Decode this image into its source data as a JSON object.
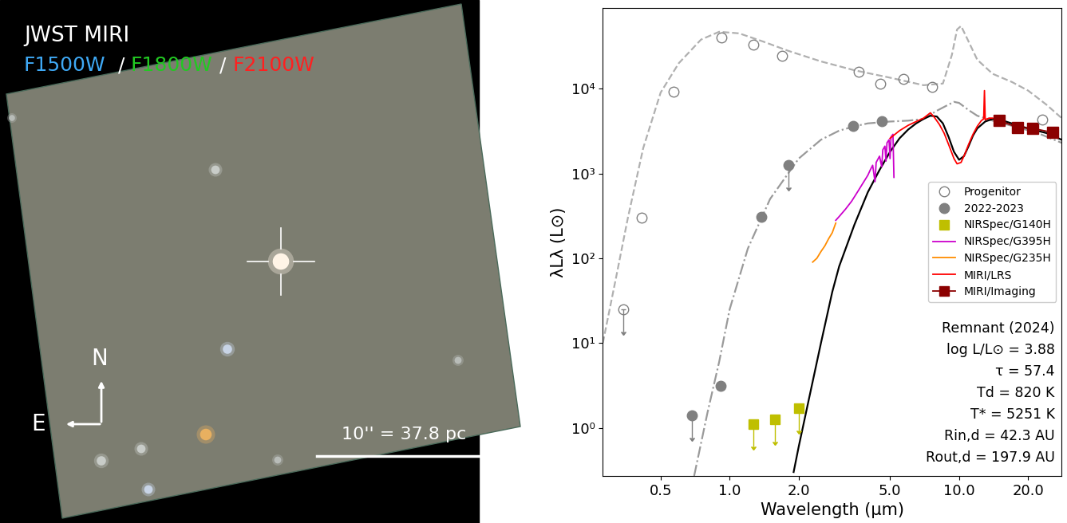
{
  "image_panel": {
    "title": "JWST MIRI",
    "filters": [
      {
        "name": "F1500W",
        "color": "#3fa9f5"
      },
      {
        "name": "F1800W",
        "color": "#22c822"
      },
      {
        "name": "F2100W",
        "color": "#ff2020"
      }
    ],
    "separator": "/",
    "north": "N",
    "east": "E",
    "scale_bar": "10'' = 37.8 pc"
  },
  "chart_data": {
    "type": "scatter",
    "log": true,
    "x_label": "Wavelength (μm)",
    "y_label": "λLλ (L⊙)",
    "xlim": [
      0.28,
      28
    ],
    "ylim": [
      0.27,
      90000
    ],
    "xticks": [
      0.5,
      {
        "value": 1,
        "label": "1.0"
      },
      {
        "value": 2,
        "label": "2.0"
      },
      {
        "value": 5,
        "label": "5.0"
      },
      {
        "value": 10,
        "label": "10.0"
      },
      {
        "value": 20,
        "label": "20.0"
      }
    ],
    "yticks": [
      {
        "value": 1,
        "label": "10⁰"
      },
      {
        "value": 10,
        "label": "10¹"
      },
      {
        "value": 100,
        "label": "10²"
      },
      {
        "value": 1000,
        "label": "10³"
      },
      {
        "value": 10000,
        "label": "10⁴"
      }
    ],
    "legend": "center right",
    "annotation": [
      "Remnant (2024)",
      "log L/L⊙ = 3.88",
      "τ = 57.4",
      "Td = 820 K",
      "T* = 5251 K",
      "Rin,d = 42.3 AU",
      "Rout,d = 197.9 AU"
    ],
    "series": [
      {
        "type": "line",
        "color": "#b0b0b0",
        "line_style": "dashed",
        "x": [
          0.28,
          0.32,
          0.36,
          0.42,
          0.5,
          0.6,
          0.75,
          0.9,
          1.1,
          1.4,
          1.8,
          2.5,
          3.5,
          5,
          7,
          8.5,
          9.3,
          9.8,
          10.2,
          10.8,
          12,
          14,
          17,
          20,
          24,
          28
        ],
        "values": [
          10,
          60,
          300,
          2000,
          9000,
          20000,
          38000,
          47000,
          45000,
          36000,
          28000,
          21000,
          16500,
          13500,
          11000,
          11500,
          25000,
          50000,
          55000,
          40000,
          22000,
          15000,
          12000,
          9500,
          6500,
          4500
        ]
      },
      {
        "type": "line",
        "color": "#9a9a9a",
        "line_style": "dashdot",
        "x": [
          0.7,
          0.8,
          0.9,
          1.0,
          1.2,
          1.5,
          2.0,
          2.5,
          3.0,
          3.5,
          4.0,
          5.0,
          6.0,
          7.0,
          8.0,
          9.0,
          9.5,
          10.0,
          11.0,
          12.0,
          14.0,
          18.0,
          22.0,
          28.0
        ],
        "values": [
          0.27,
          1.5,
          6,
          25,
          130,
          500,
          1500,
          2500,
          3200,
          3600,
          3900,
          4100,
          4200,
          4400,
          5500,
          6500,
          7000,
          6800,
          5600,
          4800,
          4200,
          3500,
          3000,
          2300
        ]
      },
      {
        "type": "line",
        "color": "black",
        "line_style": "solid",
        "x": [
          1.9,
          2.0,
          2.2,
          2.5,
          2.8,
          3.0,
          3.5,
          4.0,
          4.5,
          5.0,
          5.5,
          6.0,
          6.5,
          7.0,
          7.5,
          8.0,
          8.5,
          9.0,
          9.5,
          10.0,
          10.5,
          11.0,
          11.5,
          12.0,
          13.0,
          14.0,
          16.0,
          18.0,
          20.0,
          24.0,
          28.0
        ],
        "values": [
          0.3,
          0.6,
          2,
          10,
          40,
          80,
          250,
          600,
          1100,
          1800,
          2600,
          3300,
          3900,
          4400,
          4800,
          4700,
          3900,
          2700,
          1800,
          1450,
          1600,
          2100,
          2800,
          3400,
          4100,
          4400,
          4100,
          3700,
          3400,
          3000,
          2500
        ]
      },
      {
        "name": "Progenitor",
        "type": "scatter",
        "color": "#808080",
        "marker": "open_circle",
        "x": [
          0.344,
          0.414,
          0.571,
          0.919,
          1.27,
          1.69,
          3.66,
          4.53,
          5.7,
          7.64,
          23
        ],
        "values": [
          25,
          300,
          9300,
          40000,
          33000,
          24500,
          16000,
          11500,
          13000,
          10500,
          4300
        ],
        "upper_limit": [
          true,
          false,
          false,
          false,
          false,
          false,
          false,
          false,
          false,
          false,
          false
        ]
      },
      {
        "name": "2022-2023",
        "type": "scatter",
        "color": "#808080",
        "marker": "circle",
        "x": [
          0.687,
          0.912,
          1.37,
          1.81,
          3.44,
          4.6
        ],
        "values": [
          1.4,
          3.1,
          310,
          1250,
          3600,
          4100
        ],
        "upper_limit": [
          true,
          false,
          false,
          true,
          false,
          false
        ]
      },
      {
        "name": "NIRSpec/G140H",
        "type": "scatter",
        "color": "#bfbf00",
        "marker": "square",
        "x": [
          1.27,
          1.57,
          2.0
        ],
        "values": [
          1.1,
          1.25,
          1.7
        ],
        "upper_limit": [
          true,
          true,
          true
        ]
      },
      {
        "name": "NIRSpec/G395H",
        "type": "line",
        "color": "#cc00cc",
        "line_style": "solid",
        "x": [
          2.9,
          3.0,
          3.2,
          3.4,
          3.6,
          3.8,
          4.0,
          4.1,
          4.2,
          4.3,
          4.35,
          4.5,
          4.6,
          4.65,
          4.75,
          4.8,
          4.85,
          4.95,
          5.0,
          5.05,
          5.15,
          5.2
        ],
        "values": [
          280,
          310,
          380,
          470,
          600,
          760,
          950,
          1100,
          1250,
          800,
          1350,
          1600,
          1200,
          1900,
          2100,
          1400,
          2300,
          2500,
          1500,
          2700,
          2900,
          900
        ]
      },
      {
        "name": "NIRSpec/G235H",
        "type": "line",
        "color": "#ff8c00",
        "line_style": "solid",
        "x": [
          2.3,
          2.4,
          2.5,
          2.6,
          2.7,
          2.8,
          2.9
        ],
        "values": [
          90,
          100,
          120,
          140,
          170,
          200,
          260
        ]
      },
      {
        "name": "MIRI/LRS",
        "type": "line",
        "color": "#ff0000",
        "line_style": "solid",
        "x": [
          5.0,
          5.5,
          6.0,
          6.5,
          7.0,
          7.5,
          7.8,
          8.2,
          8.6,
          9.0,
          9.5,
          9.8,
          10.2,
          10.6,
          11.0,
          11.5,
          12.0,
          12.5,
          12.8,
          12.9,
          13.0,
          13.5,
          14.0
        ],
        "values": [
          2600,
          3200,
          3700,
          4100,
          4500,
          5200,
          4600,
          3800,
          3000,
          2200,
          1500,
          1300,
          1350,
          1700,
          2200,
          2900,
          3600,
          4200,
          4400,
          9500,
          4300,
          4500,
          4500
        ]
      },
      {
        "name": "MIRI/Imaging",
        "type": "line",
        "color": "#8b0000",
        "line_style": "solid",
        "marker": "square",
        "x": [
          15,
          18,
          21,
          25.5
        ],
        "values": [
          4200,
          3500,
          3400,
          3050
        ]
      }
    ]
  }
}
